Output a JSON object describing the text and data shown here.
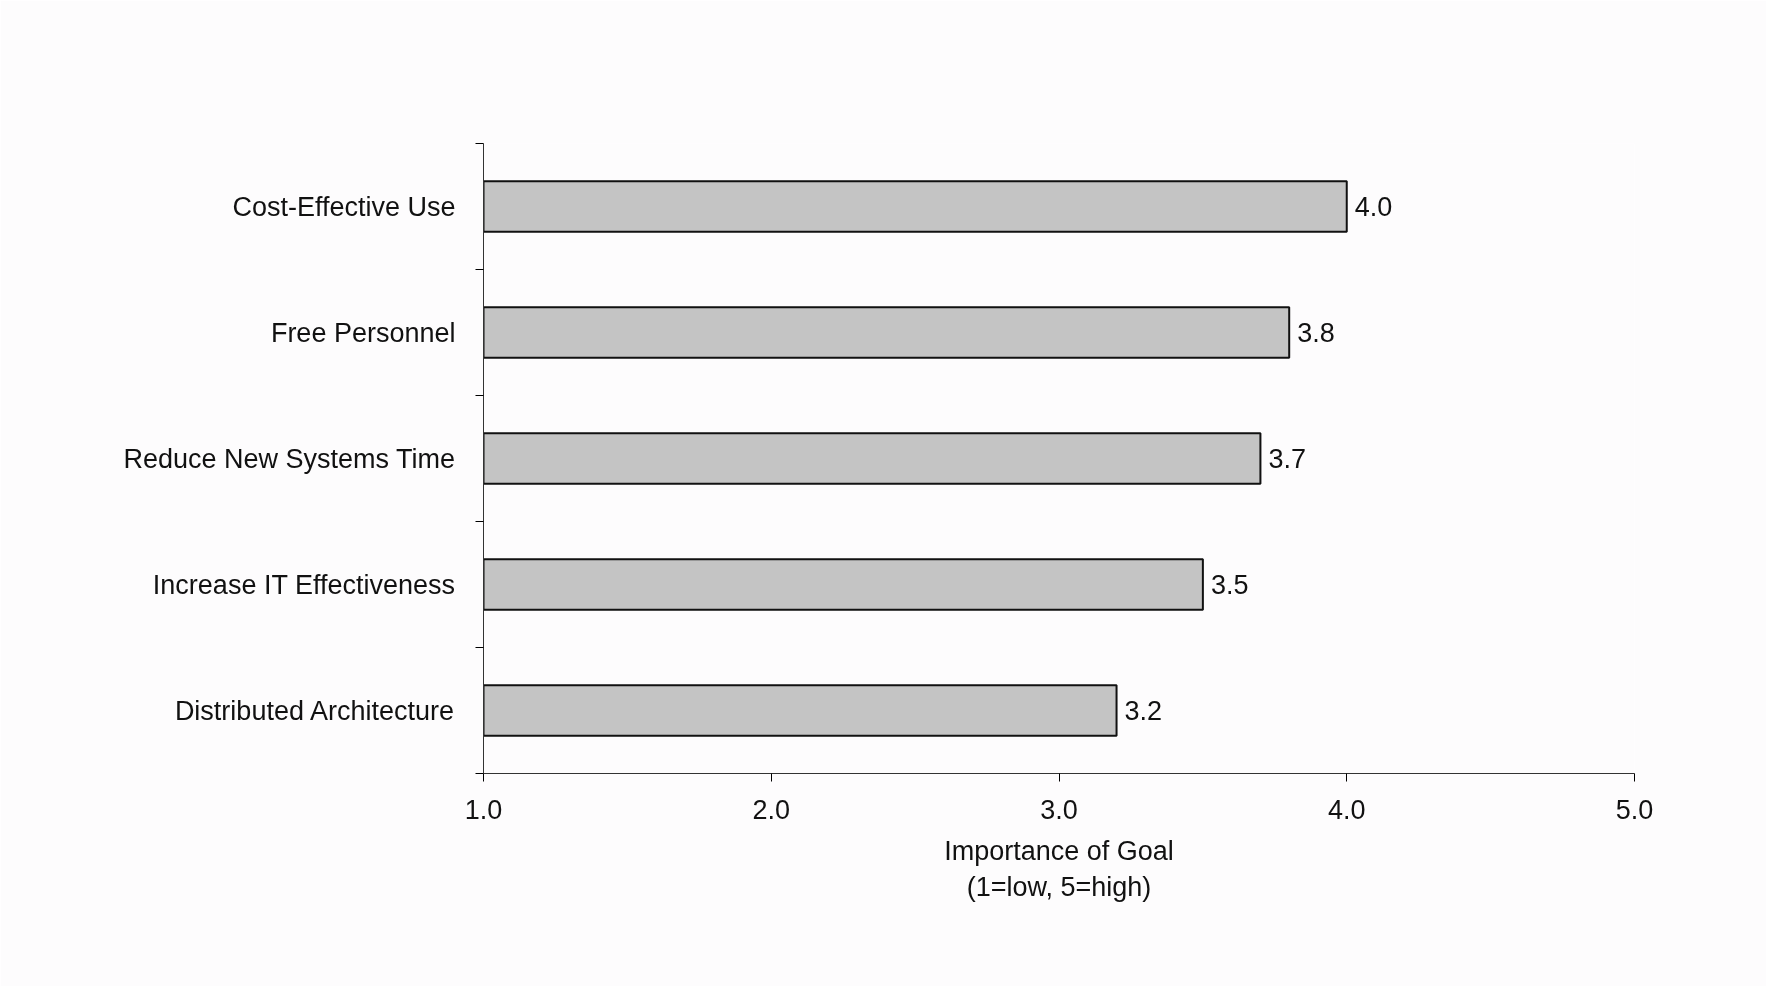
{
  "chart_data": {
    "type": "bar",
    "orientation": "horizontal",
    "categories": [
      "Cost-Effective Use",
      "Free Personnel",
      "Reduce New Systems Time",
      "Increase IT Effectiveness",
      "Distributed Architecture"
    ],
    "values": [
      4.0,
      3.8,
      3.7,
      3.5,
      3.2
    ],
    "value_labels": [
      "4.0",
      "3.8",
      "3.7",
      "3.5",
      "3.2"
    ],
    "color": "#c4c4c4",
    "xlabel": "Importance of Goal\n(1=low, 5=high)",
    "xlim": [
      1,
      5
    ],
    "xticks": [
      {
        "value": 1,
        "label": "1.0"
      },
      {
        "value": 2,
        "label": "2.0"
      },
      {
        "value": 3,
        "label": "3.0"
      },
      {
        "value": 4,
        "label": "4.0"
      },
      {
        "value": 5,
        "label": "5.0"
      }
    ]
  }
}
